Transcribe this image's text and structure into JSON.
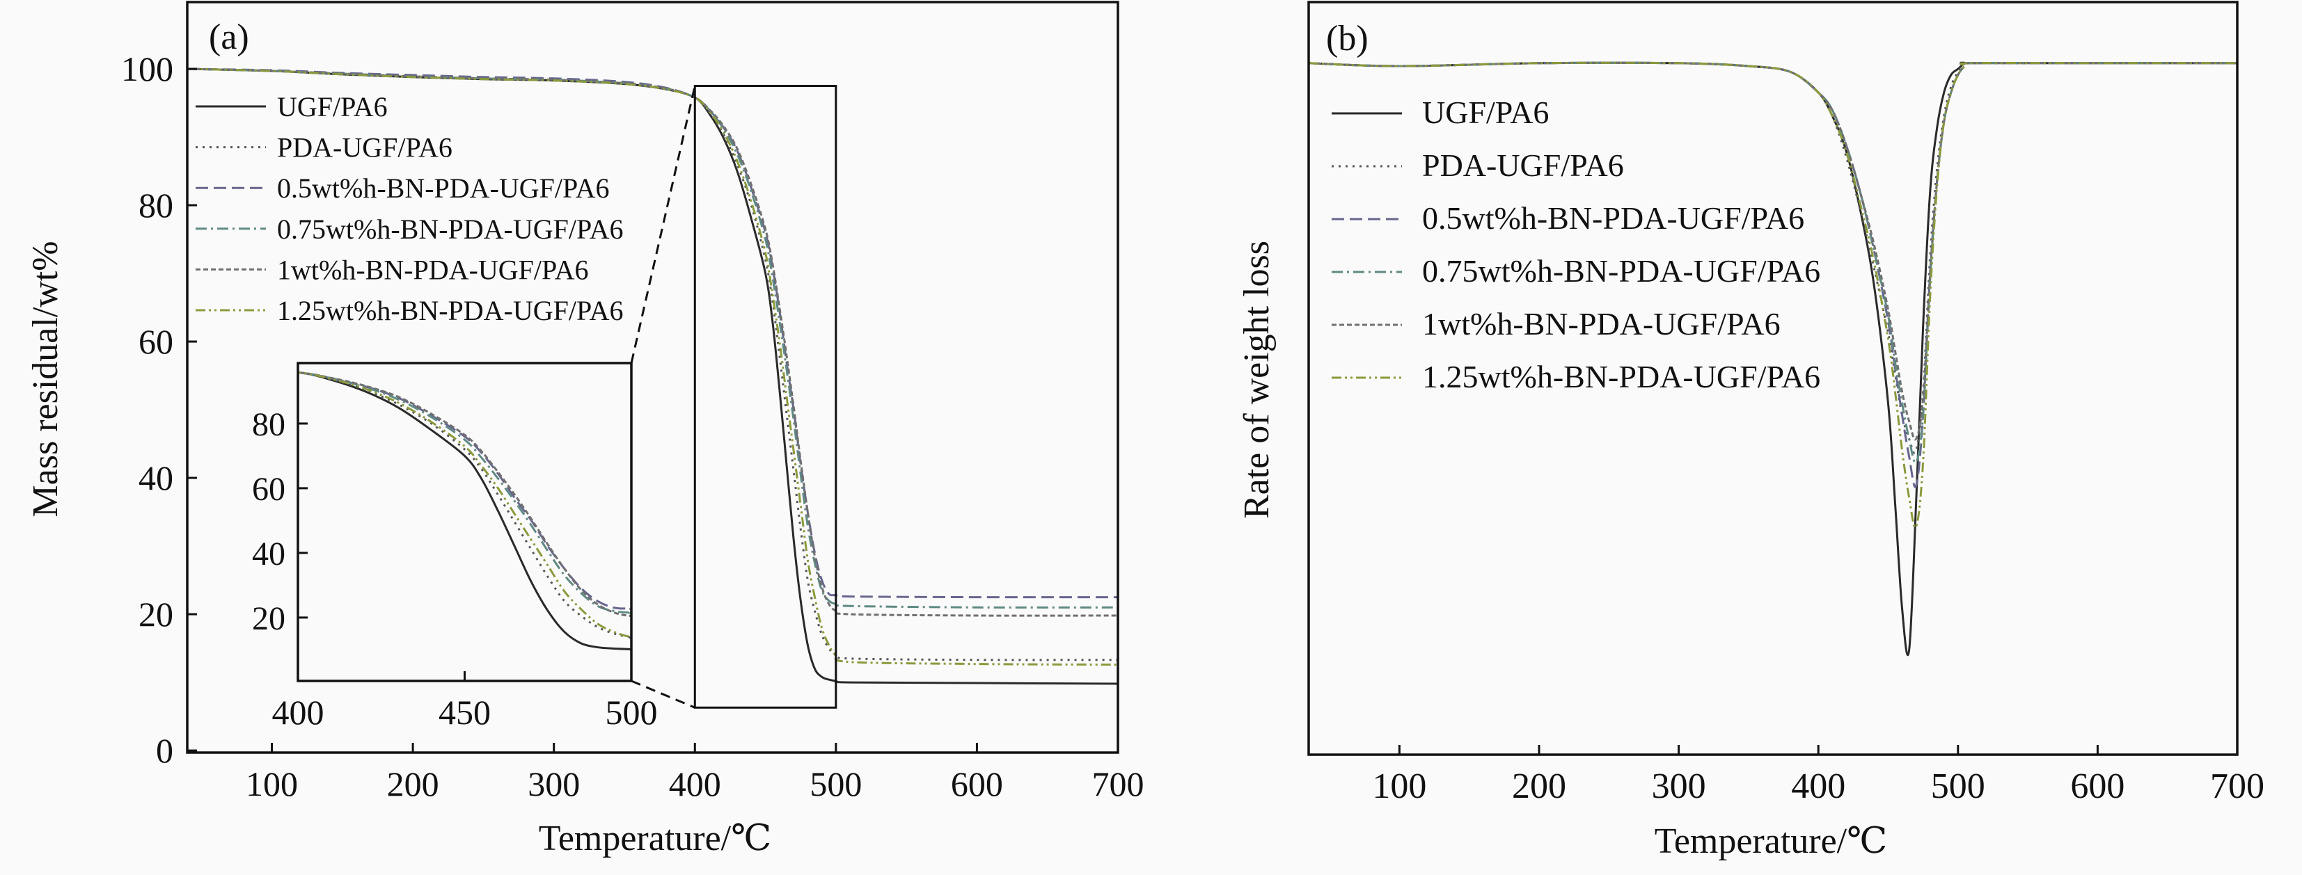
{
  "series_styles": [
    {
      "name": "UGF/PA6",
      "color": "#2a2a2a",
      "dash": "solid"
    },
    {
      "name": "PDA-UGF/PA6",
      "color": "#555555",
      "dash": "dotted"
    },
    {
      "name": "0.5wt%h-BN-PDA-UGF/PA6",
      "color": "#66668e",
      "dash": "dashed"
    },
    {
      "name": "0.75wt%h-BN-PDA-UGF/PA6",
      "color": "#5f8a84",
      "dash": "dashdot"
    },
    {
      "name": "1wt%h-BN-PDA-UGF/PA6",
      "color": "#707070",
      "dash": "shortdash"
    },
    {
      "name": "1.25wt%h-BN-PDA-UGF/PA6",
      "color": "#8b9a3c",
      "dash": "dashdotdot"
    }
  ],
  "chart_data": [
    {
      "panel_label": "(a)",
      "type": "line",
      "xlabel": "Temperature/℃",
      "ylabel": "Mass residual/wt%",
      "xlim": [
        40,
        700
      ],
      "ylim": [
        -0.3,
        109.8
      ],
      "xticks": [
        100,
        200,
        300,
        400,
        500,
        600,
        700
      ],
      "yticks": [
        0,
        20,
        40,
        60,
        80,
        100
      ],
      "legend": "left",
      "zoom_box": {
        "x": [
          400,
          500
        ],
        "y": [
          6.3,
          97.5
        ]
      },
      "inset": {
        "xlim": [
          400,
          500
        ],
        "ylim": [
          0.4,
          98.7
        ],
        "xticks": [
          400,
          450,
          500
        ],
        "yticks": [
          20,
          40,
          60,
          80
        ]
      },
      "x": [
        40,
        100,
        150,
        200,
        250,
        300,
        350,
        380,
        400,
        410,
        420,
        430,
        440,
        450,
        455,
        460,
        465,
        470,
        475,
        480,
        485,
        490,
        495,
        500,
        510,
        600,
        700
      ],
      "series": [
        {
          "name": "UGF/PA6",
          "values": [
            100,
            99.7,
            99.2,
            98.8,
            98.5,
            98.3,
            97.8,
            97.0,
            95.8,
            93.5,
            90,
            85,
            78,
            70,
            63,
            53,
            42,
            31,
            22,
            15.5,
            12,
            10.8,
            10.4,
            10.2,
            10,
            9.9,
            9.8
          ]
        },
        {
          "name": "PDA-UGF/PA6",
          "values": [
            100,
            99.7,
            99.2,
            98.8,
            98.5,
            98.3,
            97.8,
            97.0,
            95.8,
            93.7,
            90.5,
            86,
            80,
            72,
            66,
            58,
            49.5,
            41,
            32.5,
            25,
            20.5,
            17,
            15,
            14,
            13.5,
            13.3,
            13.3
          ]
        },
        {
          "name": "0.5wt%h-BN-PDA-UGF/PA6",
          "values": [
            100,
            99.8,
            99.4,
            99.1,
            98.8,
            98.6,
            98.1,
            97.2,
            95.8,
            94,
            91.5,
            88,
            82.5,
            76,
            71,
            64.5,
            57,
            50,
            42,
            35,
            29,
            25,
            23,
            22.8,
            22.6,
            22.5,
            22.5
          ]
        },
        {
          "name": "0.75wt%h-BN-PDA-UGF/PA6",
          "values": [
            100,
            99.7,
            99.3,
            98.9,
            98.6,
            98.4,
            97.9,
            97.1,
            95.8,
            94,
            91.3,
            87.5,
            82,
            75,
            69.5,
            63,
            56,
            48.5,
            40.5,
            33,
            27.5,
            23.5,
            22,
            21.5,
            21.2,
            21,
            21
          ]
        },
        {
          "name": "1wt%h-BN-PDA-UGF/PA6",
          "values": [
            100,
            99.7,
            99.3,
            98.9,
            98.6,
            98.4,
            97.9,
            97.1,
            95.8,
            94.1,
            91.7,
            88.3,
            83,
            76.5,
            71.5,
            65,
            58,
            50.5,
            42.5,
            35,
            28.5,
            24,
            21.5,
            20.5,
            20,
            19.8,
            19.8
          ]
        },
        {
          "name": "1.25wt%h-BN-PDA-UGF/PA6",
          "values": [
            100,
            99.7,
            99.2,
            98.8,
            98.5,
            98.3,
            97.8,
            97.0,
            95.8,
            93.8,
            90.8,
            86.5,
            80.5,
            73,
            67,
            60,
            52,
            44,
            36,
            28,
            22.5,
            18,
            15.5,
            14,
            13,
            12.7,
            12.6
          ]
        }
      ]
    },
    {
      "panel_label": "(b)",
      "type": "line",
      "xlabel": "Temperature/℃",
      "ylabel": "Rate of weight loss",
      "xlim": [
        35,
        700
      ],
      "ylim": [
        -1.178,
        0.104
      ],
      "xticks": [
        100,
        200,
        300,
        400,
        500,
        600,
        700
      ],
      "yticks": [],
      "legend": "left",
      "x": [
        35,
        100,
        200,
        300,
        350,
        380,
        400,
        410,
        420,
        430,
        440,
        450,
        455,
        460,
        465,
        470,
        475,
        480,
        485,
        490,
        495,
        500,
        505,
        510,
        600,
        700
      ],
      "series": [
        {
          "name": "UGF/PA6",
          "values": [
            0,
            -0.005,
            0,
            0,
            -0.005,
            -0.015,
            -0.05,
            -0.09,
            -0.15,
            -0.25,
            -0.38,
            -0.58,
            -0.75,
            -0.93,
            -1.0,
            -0.75,
            -0.45,
            -0.22,
            -0.11,
            -0.05,
            -0.02,
            -0.01,
            0,
            0,
            0,
            0
          ]
        },
        {
          "name": "PDA-UGF/PA6",
          "values": [
            0,
            -0.005,
            0,
            0,
            -0.005,
            -0.015,
            -0.05,
            -0.09,
            -0.16,
            -0.25,
            -0.35,
            -0.46,
            -0.53,
            -0.6,
            -0.64,
            -0.66,
            -0.56,
            -0.33,
            -0.18,
            -0.09,
            -0.04,
            -0.015,
            0,
            0,
            0,
            0
          ]
        },
        {
          "name": "0.5wt%h-BN-PDA-UGF/PA6",
          "values": [
            0,
            -0.005,
            0,
            0,
            -0.005,
            -0.015,
            -0.05,
            -0.08,
            -0.14,
            -0.22,
            -0.32,
            -0.44,
            -0.52,
            -0.6,
            -0.67,
            -0.72,
            -0.6,
            -0.36,
            -0.2,
            -0.1,
            -0.05,
            -0.02,
            -0.005,
            0,
            0,
            0
          ]
        },
        {
          "name": "0.75wt%h-BN-PDA-UGF/PA6",
          "values": [
            0,
            -0.005,
            0,
            0,
            -0.005,
            -0.015,
            -0.05,
            -0.08,
            -0.14,
            -0.22,
            -0.32,
            -0.43,
            -0.51,
            -0.58,
            -0.64,
            -0.68,
            -0.6,
            -0.37,
            -0.2,
            -0.1,
            -0.05,
            -0.02,
            -0.005,
            0,
            0,
            0
          ]
        },
        {
          "name": "1wt%h-BN-PDA-UGF/PA6",
          "values": [
            0,
            -0.005,
            0,
            0,
            -0.005,
            -0.015,
            -0.05,
            -0.08,
            -0.14,
            -0.22,
            -0.31,
            -0.42,
            -0.49,
            -0.56,
            -0.61,
            -0.64,
            -0.57,
            -0.36,
            -0.2,
            -0.1,
            -0.05,
            -0.02,
            -0.005,
            0,
            0,
            0
          ]
        },
        {
          "name": "1.25wt%h-BN-PDA-UGF/PA6",
          "values": [
            0,
            -0.005,
            0,
            0,
            -0.005,
            -0.015,
            -0.05,
            -0.09,
            -0.15,
            -0.24,
            -0.34,
            -0.47,
            -0.56,
            -0.66,
            -0.74,
            -0.79,
            -0.68,
            -0.4,
            -0.21,
            -0.1,
            -0.05,
            -0.02,
            -0.005,
            0,
            0,
            0
          ]
        }
      ]
    }
  ]
}
